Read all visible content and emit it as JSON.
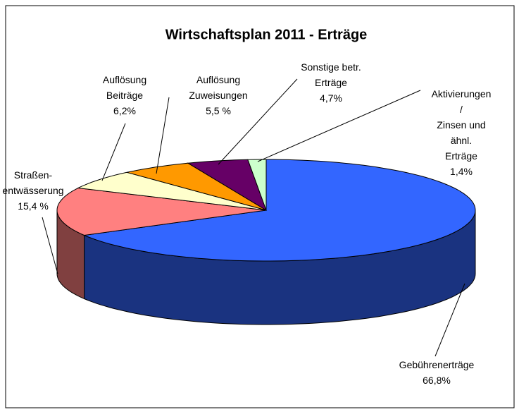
{
  "chart_data": {
    "type": "pie3d",
    "title": "Wirtschaftsplan 2011 - Erträge",
    "categories": [
      "Gebührenerträge",
      "Straßen-\nentwässerung",
      "Auflösung\nBeiträge",
      "Auflösung\nZuweisungen",
      "Sonstige betr.\nErträge",
      "Aktivierungen /\nZinsen und ähnl.\nErträge"
    ],
    "values": [
      66.8,
      15.4,
      6.2,
      5.5,
      4.7,
      1.4
    ],
    "value_labels": [
      "66,8%",
      "15,4 %",
      "6,2%",
      "5,5 %",
      "4,7%",
      "1,4%"
    ],
    "colors": [
      "#3366ff",
      "#ff8080",
      "#ffffcc",
      "#ff9900",
      "#660066",
      "#ccffcc"
    ]
  }
}
